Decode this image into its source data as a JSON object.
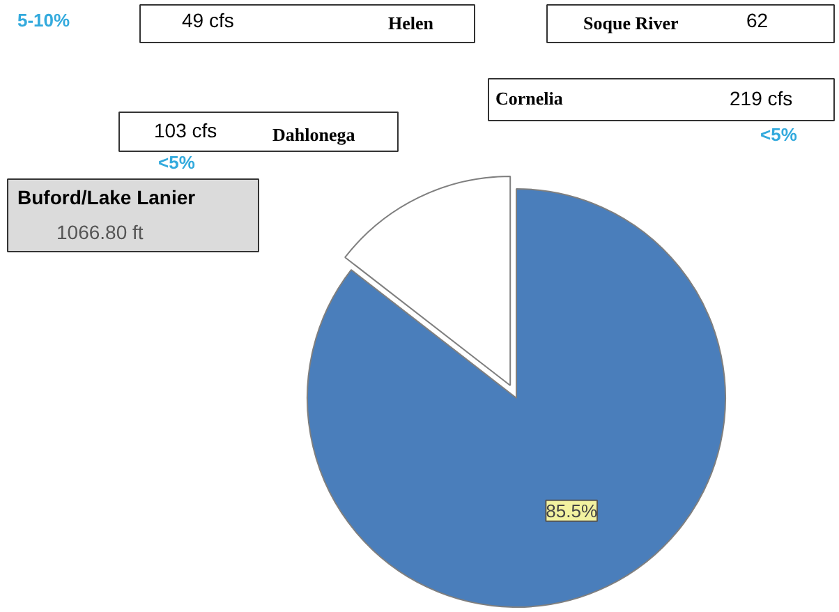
{
  "chart_data": {
    "type": "pie",
    "categories": [
      null,
      null
    ],
    "values": [
      85.5,
      14.5
    ],
    "colors": [
      "#4a7ebb",
      "#ffffff"
    ],
    "value_labels": [
      "85.5%",
      null
    ],
    "annotations": [
      "5-10%",
      "49     cfs",
      "Helen",
      "Soque River",
      "62",
      "Cornelia",
      "219  cfs",
      "<5%",
      "103  cfs",
      "Dahlonega",
      "<5%",
      "Buford/Lake Lanier",
      "1066.80 ft"
    ]
  }
}
